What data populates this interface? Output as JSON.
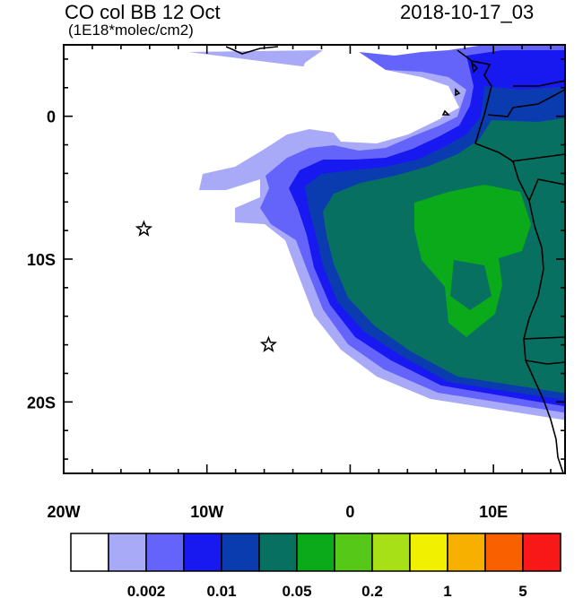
{
  "title": {
    "left": "CO col BB 12 Oct",
    "subtitle": "(1E18*molec/cm2)",
    "right": "2018-10-17_03"
  },
  "map": {
    "lon_range": [
      -20,
      15
    ],
    "lat_range": [
      -25,
      5
    ],
    "x_ticks": [
      {
        "value": -20,
        "label": "20W"
      },
      {
        "value": -10,
        "label": "10W"
      },
      {
        "value": 0,
        "label": "0"
      },
      {
        "value": 10,
        "label": "10E"
      }
    ],
    "y_ticks": [
      {
        "value": 0,
        "label": "0"
      },
      {
        "value": -10,
        "label": "10S"
      },
      {
        "value": -20,
        "label": "20S"
      }
    ],
    "markers": [
      {
        "name": "star-marker-st-helena",
        "lon": -5.7,
        "lat": -16.0
      },
      {
        "name": "star-marker-ascension",
        "lon": -14.4,
        "lat": -7.9
      }
    ]
  },
  "colorbar": {
    "colors": [
      "#ffffff",
      "#a8aaf8",
      "#6464fa",
      "#1818f0",
      "#0a3cb0",
      "#087060",
      "#0aaa1a",
      "#56c818",
      "#a8e018",
      "#f0f000",
      "#f8b000",
      "#f86000",
      "#f81818"
    ],
    "labels": [
      {
        "after_box": 2,
        "text": "0.002"
      },
      {
        "after_box": 4,
        "text": "0.01"
      },
      {
        "after_box": 6,
        "text": "0.05"
      },
      {
        "after_box": 8,
        "text": "0.2"
      },
      {
        "after_box": 10,
        "text": "1"
      },
      {
        "after_box": 12,
        "text": "5"
      }
    ]
  }
}
